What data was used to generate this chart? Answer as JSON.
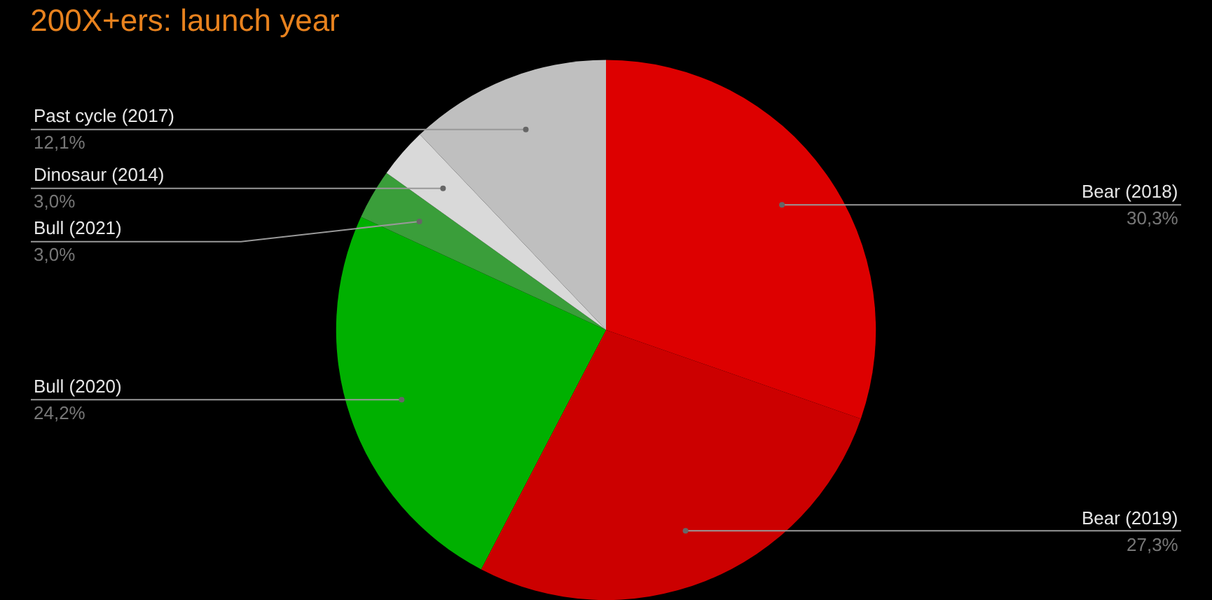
{
  "chart_data": {
    "type": "pie",
    "title": "200X+ers: launch year",
    "categories": [
      "Bear (2018)",
      "Bear (2019)",
      "Bull (2020)",
      "Bull (2021)",
      "Dinosaur (2014)",
      "Past cycle (2017)"
    ],
    "values": [
      30.3,
      27.3,
      24.2,
      3.0,
      3.0,
      12.1
    ],
    "value_labels": [
      "30,3%",
      "27,3%",
      "24,2%",
      "3,0%",
      "3,0%",
      "12,1%"
    ],
    "colors": [
      "#dd0000",
      "#cc0000",
      "#00b000",
      "#3a9e3a",
      "#d9d9d9",
      "#bfbfbf"
    ]
  }
}
